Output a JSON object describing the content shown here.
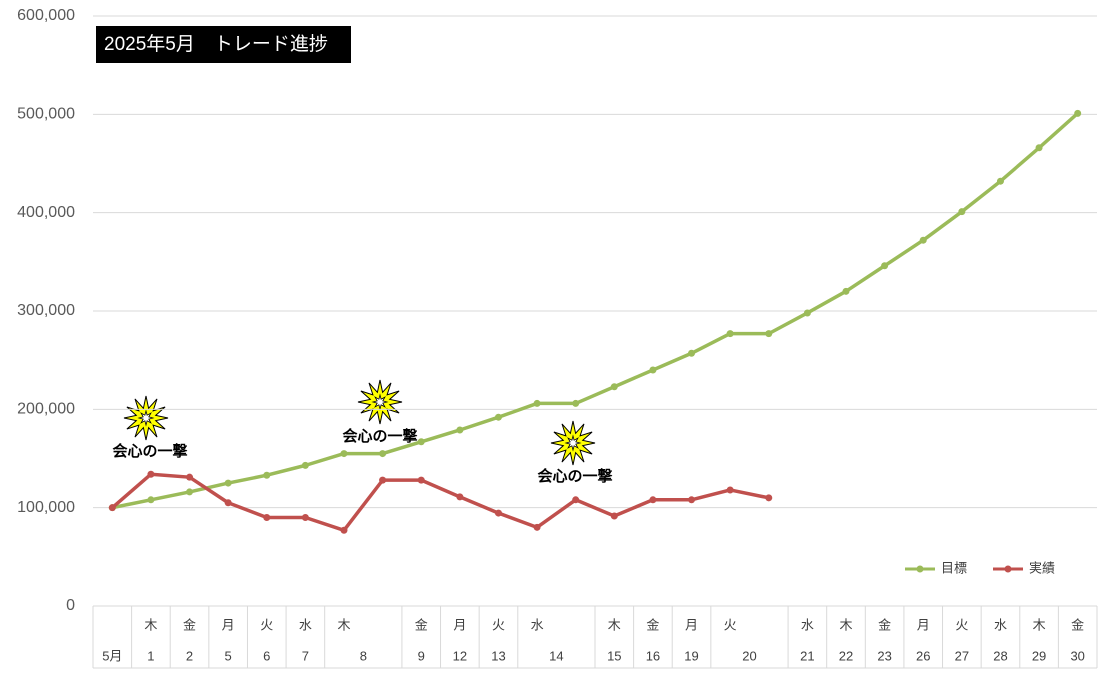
{
  "chart_data": {
    "type": "line",
    "title": "2025年5月　トレード進捗",
    "categories": [
      null,
      "木",
      "金",
      "月",
      "火",
      "水",
      "木",
      null,
      "金",
      "月",
      "火",
      "水",
      null,
      "木",
      "金",
      "月",
      "火",
      null,
      "水",
      "木",
      "金",
      "月",
      "火",
      "水",
      "木",
      "金"
    ],
    "day_labels": [
      "5月",
      "1",
      "2",
      "5",
      "6",
      "7",
      "8",
      null,
      "9",
      "12",
      "13",
      "14",
      null,
      "15",
      "16",
      "19",
      "20",
      null,
      "21",
      "22",
      "23",
      "26",
      "27",
      "28",
      "29",
      "30"
    ],
    "series": [
      {
        "name": "目標",
        "color": "#9bbb59",
        "values": [
          100000,
          108000,
          116000,
          125000,
          133000,
          143000,
          155000,
          155000,
          167000,
          179000,
          192000,
          206000,
          206000,
          223000,
          240000,
          257000,
          277000,
          277000,
          298000,
          320000,
          346000,
          372000,
          401000,
          432000,
          466000,
          501000
        ]
      },
      {
        "name": "実績",
        "color": "#c0504d",
        "values": [
          100000,
          134000,
          131000,
          105000,
          90000,
          90000,
          77000,
          128000,
          128000,
          111000,
          94500,
          80000,
          108000,
          91500,
          108000,
          108000,
          118000,
          110000,
          null,
          null,
          null,
          null,
          null,
          null,
          null,
          null
        ]
      }
    ],
    "ylim": [
      0,
      600000
    ],
    "yticks": [
      0,
      {
        "value": 100000,
        "label": "100,000"
      },
      {
        "value": 200000,
        "label": "200,000"
      },
      {
        "value": 300000,
        "label": "300,000"
      },
      {
        "value": 400000,
        "label": "400,000"
      },
      {
        "value": 500000,
        "label": "500,000"
      },
      {
        "value": 600000,
        "label": "600,000"
      }
    ],
    "grid": true,
    "legend": "bottom-right",
    "annotations": [
      "会心の一撃",
      "会心の一撃",
      "会心の一撃"
    ]
  }
}
